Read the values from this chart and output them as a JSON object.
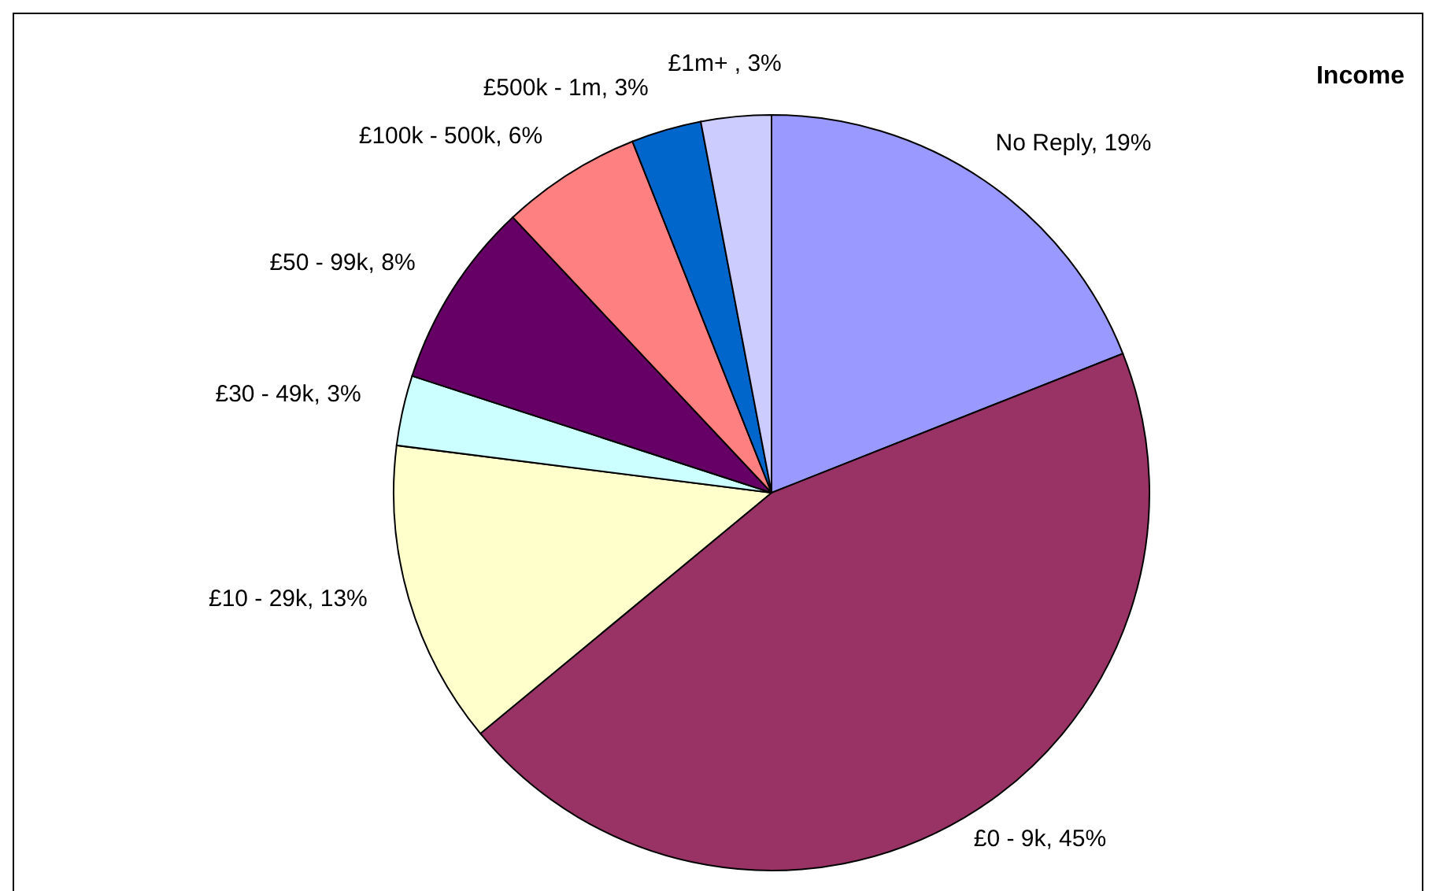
{
  "chart_data": {
    "type": "pie",
    "title": "Income",
    "categories": [
      "No Reply",
      "£0 - 9k",
      "£10 - 29k",
      "£30 - 49k",
      "£50 - 99k",
      "£100k - 500k",
      "£500k - 1m",
      "£1m+ "
    ],
    "values": [
      19,
      45,
      13,
      3,
      8,
      6,
      3,
      3
    ],
    "colors": [
      "#9999ff",
      "#993366",
      "#ffffcc",
      "#ccffff",
      "#660066",
      "#ff8080",
      "#0066cc",
      "#ccccff"
    ],
    "value_labels": [
      ", 19%",
      ", 45%",
      ", 13%",
      ", 3%",
      ", 8%",
      ", 6%",
      ", 3%",
      ", 3%"
    ]
  }
}
